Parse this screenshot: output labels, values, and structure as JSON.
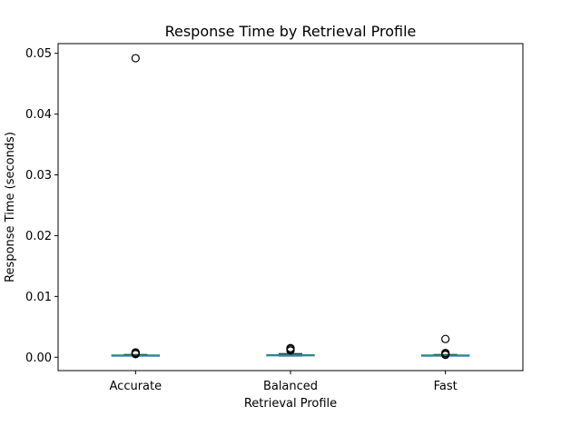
{
  "chart_data": {
    "type": "box",
    "title": "Response Time by Retrieval Profile",
    "xlabel": "Retrieval Profile",
    "ylabel": "Response Time (seconds)",
    "categories": [
      "Accurate",
      "Balanced",
      "Fast"
    ],
    "ylim": [
      -0.0022,
      0.0516
    ],
    "yticks": [
      0.0,
      0.01,
      0.02,
      0.03,
      0.04,
      0.05
    ],
    "ytick_labels": [
      "0.00",
      "0.01",
      "0.02",
      "0.03",
      "0.04",
      "0.05"
    ],
    "grid": false,
    "boxes": [
      {
        "category": "Accurate",
        "whisker_low": 0.0002,
        "q1": 0.00025,
        "median": 0.0003,
        "q3": 0.00035,
        "whisker_high": 0.00045,
        "outliers": [
          0.0492,
          0.0008,
          0.0007,
          0.0006,
          0.0005
        ]
      },
      {
        "category": "Balanced",
        "whisker_low": 0.0002,
        "q1": 0.00025,
        "median": 0.0003,
        "q3": 0.0004,
        "whisker_high": 0.0006,
        "outliers": [
          0.0015,
          0.0013,
          0.0011
        ]
      },
      {
        "category": "Fast",
        "whisker_low": 0.0002,
        "q1": 0.00025,
        "median": 0.0003,
        "q3": 0.00035,
        "whisker_high": 0.00045,
        "outliers": [
          0.003,
          0.0007,
          0.0005,
          0.0004
        ]
      }
    ],
    "colors": {
      "box": "#1f77b4",
      "median": "#2ca02c",
      "whisker": "#000000",
      "outlier": "#000000"
    }
  }
}
